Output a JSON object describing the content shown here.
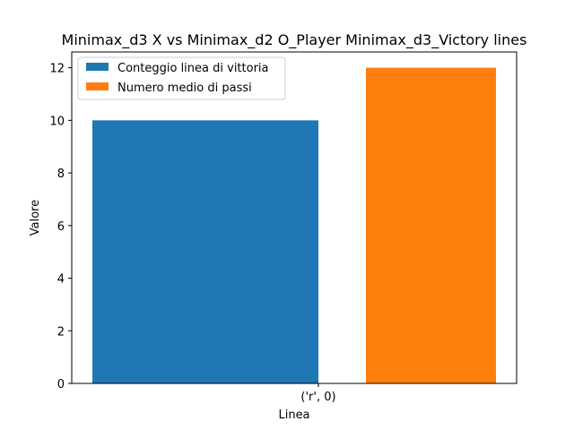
{
  "chart_data": {
    "type": "bar",
    "title": "Minimax_d3 X vs Minimax_d2 O_Player Minimax_d3_Victory lines",
    "xlabel": "Linea",
    "ylabel": "Valore",
    "categories": [
      "('r', 0)"
    ],
    "series": [
      {
        "name": "Conteggio linea di vittoria",
        "values": [
          10
        ],
        "color": "#1f77b4"
      },
      {
        "name": "Numero medio di passi",
        "values": [
          12
        ],
        "color": "#ff7f0e"
      }
    ],
    "ylim": [
      0,
      12.6
    ],
    "yticks": [
      0,
      2,
      4,
      6,
      8,
      10,
      12
    ],
    "grid": false,
    "legend_position": "top-left"
  }
}
